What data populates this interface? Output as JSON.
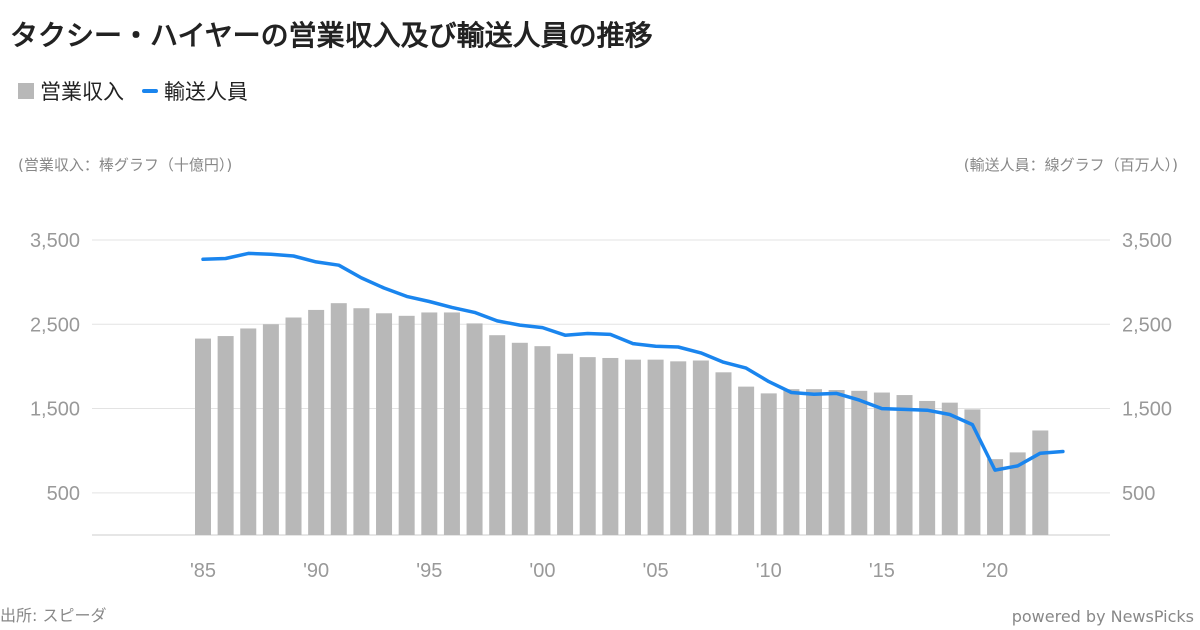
{
  "colors": {
    "bar": "#b8b8b8",
    "line": "#1a85ee",
    "grid": "#e3e3e3",
    "tick": "#999999"
  },
  "chart_data": {
    "type": "bar",
    "title": "タクシー・ハイヤーの営業収入及び輸送人員の推移",
    "legend": [
      "営業収入",
      "輸送人員"
    ],
    "legend_placement": "top-left",
    "ylabel_left": "(営業収入：棒グラフ（十億円）)",
    "ylabel_right": "(輸送人員：線グラフ（百万人）)",
    "ylim": [
      0,
      3600
    ],
    "y_ticks": [
      500,
      1500,
      2500,
      3500
    ],
    "y_tick_labels": [
      "500",
      "1,500",
      "2,500",
      "3,500"
    ],
    "x_range": [
      1985,
      2023
    ],
    "x_ticks": [
      1985,
      1990,
      1995,
      2000,
      2005,
      2010,
      2015,
      2020
    ],
    "x_tick_labels": [
      "'85",
      "'90",
      "'95",
      "'00",
      "'05",
      "'10",
      "'15",
      "'20"
    ],
    "grid": true,
    "series": [
      {
        "name": "営業収入",
        "type": "bar",
        "x": [
          1985,
          1986,
          1987,
          1988,
          1989,
          1990,
          1991,
          1992,
          1993,
          1994,
          1995,
          1996,
          1997,
          1998,
          1999,
          2000,
          2001,
          2002,
          2003,
          2004,
          2005,
          2006,
          2007,
          2008,
          2009,
          2010,
          2011,
          2012,
          2013,
          2014,
          2015,
          2016,
          2017,
          2018,
          2019,
          2020,
          2021,
          2022
        ],
        "values": [
          2330,
          2360,
          2450,
          2500,
          2580,
          2670,
          2750,
          2690,
          2630,
          2600,
          2640,
          2640,
          2510,
          2370,
          2280,
          2240,
          2150,
          2110,
          2100,
          2080,
          2080,
          2060,
          2070,
          1930,
          1760,
          1680,
          1730,
          1730,
          1720,
          1710,
          1690,
          1660,
          1590,
          1570,
          1490,
          900,
          980,
          1240
        ]
      },
      {
        "name": "輸送人員",
        "type": "line",
        "x": [
          1985,
          1986,
          1987,
          1988,
          1989,
          1990,
          1991,
          1992,
          1993,
          1994,
          1995,
          1996,
          1997,
          1998,
          1999,
          2000,
          2001,
          2002,
          2003,
          2004,
          2005,
          2006,
          2007,
          2008,
          2009,
          2010,
          2011,
          2012,
          2013,
          2014,
          2015,
          2016,
          2017,
          2018,
          2019,
          2020,
          2021,
          2022,
          2023
        ],
        "values": [
          3270,
          3280,
          3340,
          3330,
          3310,
          3240,
          3200,
          3050,
          2930,
          2830,
          2770,
          2700,
          2640,
          2540,
          2490,
          2460,
          2370,
          2390,
          2380,
          2270,
          2240,
          2230,
          2160,
          2050,
          1980,
          1820,
          1690,
          1670,
          1680,
          1600,
          1500,
          1490,
          1480,
          1430,
          1310,
          770,
          820,
          970,
          990
        ]
      }
    ]
  },
  "footer": {
    "source": "出所: スピーダ",
    "credit": "powered by NewsPicks"
  }
}
